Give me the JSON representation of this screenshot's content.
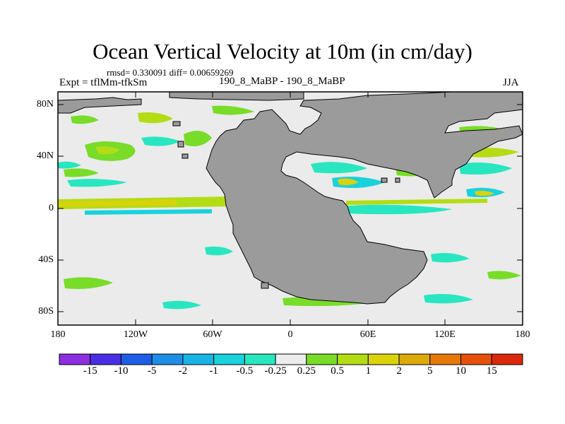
{
  "title": "Ocean Vertical Velocity at 10m (in cm/day)",
  "stats": "rmsd= 0.330091  diff= 0.00659269",
  "experiment": "Expt = tflMm-tfkSm",
  "case": "190_8_MaBP - 190_8_MaBP",
  "season": "JJA",
  "lat_ticks": [
    "80N",
    "40N",
    "0",
    "40S",
    "80S"
  ],
  "lon_ticks": [
    "180",
    "120W",
    "60W",
    "0",
    "60E",
    "120E",
    "180"
  ],
  "colorbar": {
    "labels": [
      "-15",
      "-10",
      "-5",
      "-2",
      "-1",
      "-0.5",
      "-0.25",
      "0.25",
      "0.5",
      "1",
      "2",
      "5",
      "10",
      "15"
    ],
    "colors": [
      "#8d2ee0",
      "#4a2ee6",
      "#1e5ee6",
      "#1e8ee6",
      "#19b4e6",
      "#19d2dc",
      "#28e6c0",
      "#ececec",
      "#78dc28",
      "#b4dc14",
      "#dcd20a",
      "#dcaa0a",
      "#e6780a",
      "#e6500a",
      "#dc280a"
    ]
  },
  "land_color": "#9b9b9b",
  "ocean_color": "#ebebeb"
}
